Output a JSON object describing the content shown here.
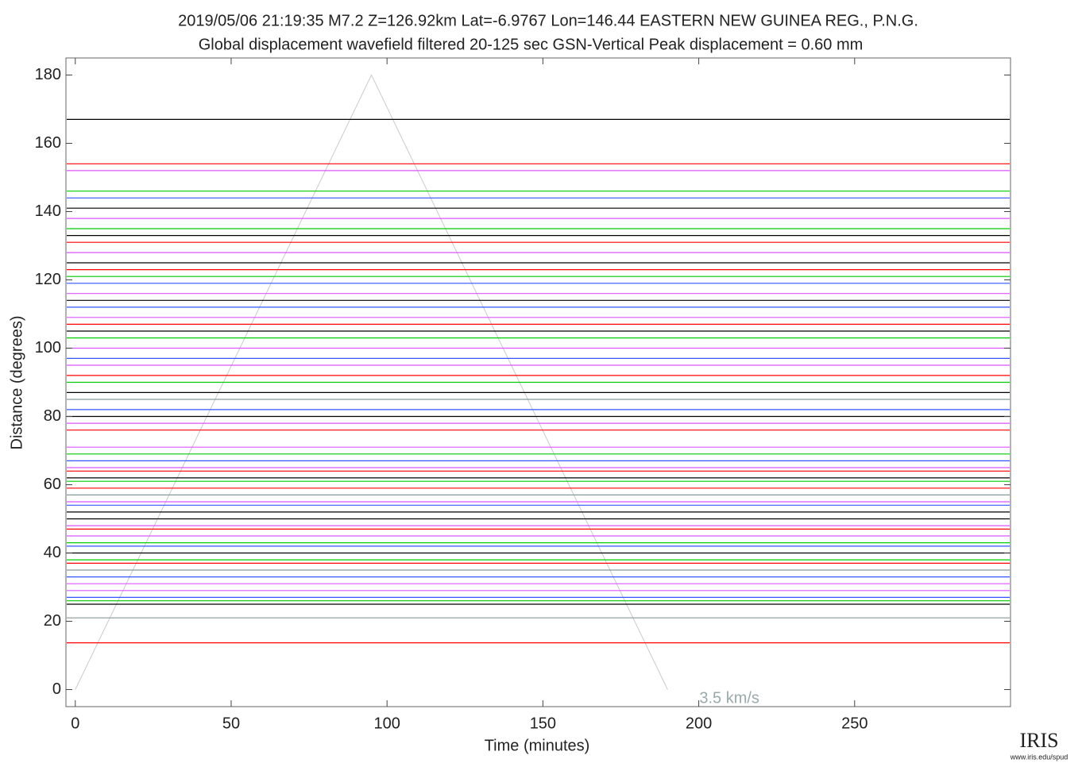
{
  "chart_data": {
    "type": "record-section",
    "title": "2019/05/06  21:19:35  M7.2  Z=126.92km  Lat=-6.9767 Lon=146.44  EASTERN NEW GUINEA REG., P.N.G.",
    "subtitle": "Global displacement wavefield     filtered 20-125 sec     GSN-Vertical     Peak displacement = 0.60 mm",
    "x_label": "Time (minutes)",
    "y_label": "Distance (degrees)",
    "xlim": [
      -3,
      300
    ],
    "ylim": [
      -5,
      185
    ],
    "xticks": [
      0,
      50,
      100,
      150,
      200,
      250
    ],
    "yticks": [
      0,
      20,
      40,
      60,
      80,
      100,
      120,
      140,
      160,
      180
    ],
    "velocity_line": {
      "name": "3.5 km/s",
      "color": "#c8cccc",
      "x": [
        0,
        95,
        190
      ],
      "values": [
        0,
        180,
        0
      ]
    },
    "traces": [
      {
        "distance": 13.7,
        "color": "#ff0000"
      },
      {
        "distance": 21,
        "color": "#889999"
      },
      {
        "distance": 25,
        "color": "#000000"
      },
      {
        "distance": 26,
        "color": "#00cc00"
      },
      {
        "distance": 27,
        "color": "#3355ff"
      },
      {
        "distance": 29,
        "color": "#dd55ff"
      },
      {
        "distance": 31,
        "color": "#dd55ff"
      },
      {
        "distance": 33,
        "color": "#3355ff"
      },
      {
        "distance": 35,
        "color": "#889999"
      },
      {
        "distance": 37,
        "color": "#ff0000"
      },
      {
        "distance": 38,
        "color": "#00cc00"
      },
      {
        "distance": 40,
        "color": "#000000"
      },
      {
        "distance": 42,
        "color": "#3355ff"
      },
      {
        "distance": 43,
        "color": "#00cc00"
      },
      {
        "distance": 45,
        "color": "#dd55ff"
      },
      {
        "distance": 47,
        "color": "#ff0000"
      },
      {
        "distance": 48,
        "color": "#dd55ff"
      },
      {
        "distance": 50,
        "color": "#000000"
      },
      {
        "distance": 52,
        "color": "#000000"
      },
      {
        "distance": 54,
        "color": "#3355ff"
      },
      {
        "distance": 55,
        "color": "#dd55ff"
      },
      {
        "distance": 57,
        "color": "#889999"
      },
      {
        "distance": 59,
        "color": "#ff0000"
      },
      {
        "distance": 61,
        "color": "#00cc00"
      },
      {
        "distance": 62,
        "color": "#000000"
      },
      {
        "distance": 64,
        "color": "#ff0000"
      },
      {
        "distance": 65,
        "color": "#dd55ff"
      },
      {
        "distance": 67,
        "color": "#3355ff"
      },
      {
        "distance": 69,
        "color": "#00cc00"
      },
      {
        "distance": 71,
        "color": "#dd55ff"
      },
      {
        "distance": 76,
        "color": "#ff0000"
      },
      {
        "distance": 78,
        "color": "#dd55ff"
      },
      {
        "distance": 80,
        "color": "#000000"
      },
      {
        "distance": 82,
        "color": "#3355ff"
      },
      {
        "distance": 85,
        "color": "#889999"
      },
      {
        "distance": 87,
        "color": "#000000"
      },
      {
        "distance": 90,
        "color": "#00cc00"
      },
      {
        "distance": 92,
        "color": "#ff0000"
      },
      {
        "distance": 95,
        "color": "#dd55ff"
      },
      {
        "distance": 97,
        "color": "#3355ff"
      },
      {
        "distance": 100,
        "color": "#dd55ff"
      },
      {
        "distance": 103,
        "color": "#00cc00"
      },
      {
        "distance": 105,
        "color": "#000000"
      },
      {
        "distance": 107,
        "color": "#ff0000"
      },
      {
        "distance": 109,
        "color": "#dd55ff"
      },
      {
        "distance": 112,
        "color": "#3355ff"
      },
      {
        "distance": 114,
        "color": "#000000"
      },
      {
        "distance": 116,
        "color": "#dd55ff"
      },
      {
        "distance": 119,
        "color": "#3355ff"
      },
      {
        "distance": 121,
        "color": "#00cc00"
      },
      {
        "distance": 123,
        "color": "#ff0000"
      },
      {
        "distance": 125,
        "color": "#000000"
      },
      {
        "distance": 128,
        "color": "#dd55ff"
      },
      {
        "distance": 131,
        "color": "#ff0000"
      },
      {
        "distance": 133,
        "color": "#000000"
      },
      {
        "distance": 135,
        "color": "#00cc00"
      },
      {
        "distance": 138,
        "color": "#dd55ff"
      },
      {
        "distance": 141,
        "color": "#000000"
      },
      {
        "distance": 144,
        "color": "#3355ff"
      },
      {
        "distance": 146,
        "color": "#00cc00"
      },
      {
        "distance": 152,
        "color": "#dd55ff"
      },
      {
        "distance": 154,
        "color": "#ff0000"
      },
      {
        "distance": 167,
        "color": "#000000"
      }
    ],
    "logo": "IRIS",
    "logo_url": "www.iris.edu/spud"
  }
}
